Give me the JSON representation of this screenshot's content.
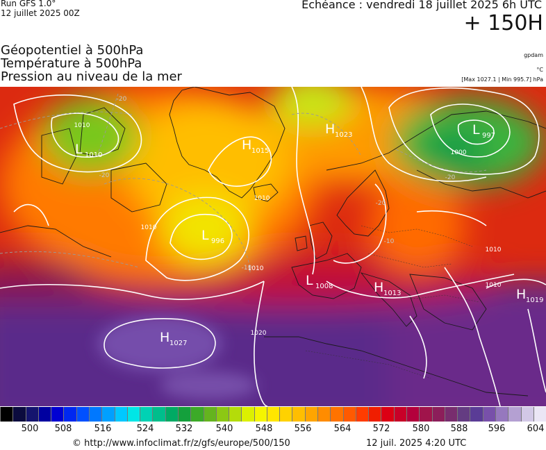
{
  "header": {
    "run_title": "Run GFS 1.0°",
    "run_date": "12 juillet 2025 00Z",
    "forecast_time": "Echéance : vendredi 18 juillet 2025 6h UTC",
    "lead_time": "+ 150H"
  },
  "parameters": {
    "line1": "Géopotentiel à 500hPa",
    "line2": "Température à 500hPa",
    "line3": "Pression au niveau de la mer",
    "unit1": "gpdam",
    "unit2": "°C",
    "unit3": "[Max 1027.1 | Min 995.7] hPa"
  },
  "map": {
    "pressure_centers": [
      {
        "type": "L",
        "value": "1010"
      },
      {
        "type": "H",
        "value": "1015"
      },
      {
        "type": "H",
        "value": "1023"
      },
      {
        "type": "L",
        "value": "997"
      },
      {
        "type": "L",
        "value": "996"
      },
      {
        "type": "L",
        "value": "1008"
      },
      {
        "type": "H",
        "value": "1013"
      },
      {
        "type": "H",
        "value": "1019"
      },
      {
        "type": "H",
        "value": "1027"
      }
    ],
    "isobar_labels": [
      "1010",
      "1000",
      "1020",
      "1010",
      "1010",
      "1010",
      "1010",
      "1010"
    ],
    "temperature_labels": [
      "-20",
      "-20",
      "-20",
      "-10",
      "-20",
      "-10"
    ]
  },
  "legend": {
    "colors": [
      "#000000",
      "#0b0b3e",
      "#14146e",
      "#0000a0",
      "#0000d2",
      "#0028f0",
      "#0050ff",
      "#0078ff",
      "#00a0ff",
      "#00c8ff",
      "#00e6e6",
      "#00d2b4",
      "#00be8c",
      "#00aa64",
      "#14a03c",
      "#3caa28",
      "#64b41e",
      "#8cc814",
      "#b4dc0a",
      "#dcf000",
      "#f5f500",
      "#ffe600",
      "#ffd200",
      "#ffbe00",
      "#ffa500",
      "#ff8c00",
      "#ff7300",
      "#ff5a00",
      "#ff3c00",
      "#f01e00",
      "#dc0014",
      "#c80028",
      "#b4003c",
      "#a0144b",
      "#8c1e5a",
      "#782d6e",
      "#643c82",
      "#5a3c96",
      "#7850aa",
      "#9678be",
      "#b4a0d2",
      "#d2c8e6",
      "#ebe6f5"
    ],
    "tick_labels": [
      "500",
      "508",
      "516",
      "524",
      "532",
      "540",
      "548",
      "556",
      "564",
      "572",
      "580",
      "588",
      "596",
      "604"
    ]
  },
  "footer": {
    "credit": "© http://www.infoclimat.fr/z/gfs/europe/500/150",
    "generated": "12 juil. 2025  4:20 UTC"
  }
}
